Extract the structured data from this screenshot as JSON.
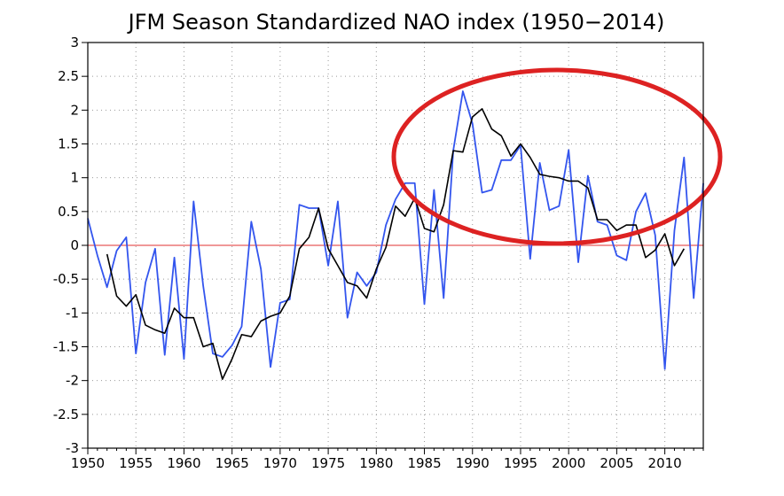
{
  "chart_data": {
    "type": "line",
    "title": "JFM Season Standardized NAO index (1950−2014)",
    "xlim": [
      1950,
      2014
    ],
    "ylim": [
      -3,
      3
    ],
    "x_ticks": [
      1950,
      1955,
      1960,
      1965,
      1970,
      1975,
      1980,
      1985,
      1990,
      1995,
      2000,
      2005,
      2010
    ],
    "y_ticks": [
      3,
      2.5,
      2,
      1.5,
      1,
      0.5,
      0,
      -0.5,
      -1,
      -1.5,
      -2,
      -2.5,
      -3
    ],
    "grid": true,
    "series": [
      {
        "color": "#3355ee",
        "x": [
          1950,
          1951,
          1952,
          1953,
          1954,
          1955,
          1956,
          1957,
          1958,
          1959,
          1960,
          1961,
          1962,
          1963,
          1964,
          1965,
          1966,
          1967,
          1968,
          1969,
          1970,
          1971,
          1972,
          1973,
          1974,
          1975,
          1976,
          1977,
          1978,
          1979,
          1980,
          1981,
          1982,
          1983,
          1984,
          1985,
          1986,
          1987,
          1988,
          1989,
          1990,
          1991,
          1992,
          1993,
          1994,
          1995,
          1996,
          1997,
          1998,
          1999,
          2000,
          2001,
          2002,
          2003,
          2004,
          2005,
          2006,
          2007,
          2008,
          2009,
          2010,
          2011,
          2012,
          2013,
          2014
        ],
        "values": [
          0.4,
          -0.15,
          -0.62,
          -0.08,
          0.12,
          -1.6,
          -0.55,
          -0.05,
          -1.62,
          -0.18,
          -1.68,
          0.65,
          -0.6,
          -1.6,
          -1.65,
          -1.48,
          -1.2,
          0.35,
          -0.35,
          -1.8,
          -0.85,
          -0.8,
          0.6,
          0.55,
          0.55,
          -0.3,
          0.65,
          -1.07,
          -0.4,
          -0.6,
          -0.4,
          0.3,
          0.68,
          0.92,
          0.92,
          -0.87,
          0.82,
          -0.78,
          1.4,
          2.28,
          1.8,
          0.78,
          0.82,
          1.26,
          1.26,
          1.48,
          -0.2,
          1.22,
          0.52,
          0.58,
          1.41,
          -0.25,
          1.03,
          0.35,
          0.3,
          -0.15,
          -0.22,
          0.5,
          0.77,
          0.15,
          -1.83,
          0.22,
          1.3,
          -0.78,
          0.92
        ]
      },
      {
        "color": "#000000",
        "x": [
          1952,
          1953,
          1954,
          1955,
          1956,
          1957,
          1958,
          1959,
          1960,
          1961,
          1962,
          1963,
          1964,
          1965,
          1966,
          1967,
          1968,
          1969,
          1970,
          1971,
          1972,
          1973,
          1974,
          1975,
          1976,
          1977,
          1978,
          1979,
          1980,
          1981,
          1982,
          1983,
          1984,
          1985,
          1986,
          1987,
          1988,
          1989,
          1990,
          1991,
          1992,
          1993,
          1994,
          1995,
          1996,
          1997,
          1998,
          1999,
          2000,
          2001,
          2002,
          2003,
          2004,
          2005,
          2006,
          2007,
          2008,
          2009,
          2010,
          2011,
          2012
        ],
        "values": [
          -0.13,
          -0.75,
          -0.9,
          -0.73,
          -1.18,
          -1.25,
          -1.3,
          -0.93,
          -1.07,
          -1.07,
          -1.5,
          -1.45,
          -1.98,
          -1.68,
          -1.32,
          -1.35,
          -1.12,
          -1.05,
          -1.0,
          -0.75,
          -0.05,
          0.12,
          0.55,
          -0.05,
          -0.3,
          -0.55,
          -0.6,
          -0.78,
          -0.35,
          -0.03,
          0.58,
          0.43,
          0.7,
          0.25,
          0.2,
          0.6,
          1.4,
          1.38,
          1.9,
          2.02,
          1.72,
          1.62,
          1.32,
          1.5,
          1.3,
          1.05,
          1.02,
          1.0,
          0.95,
          0.95,
          0.85,
          0.38,
          0.38,
          0.22,
          0.3,
          0.3,
          -0.18,
          -0.07,
          0.17,
          -0.3,
          -0.05
        ]
      }
    ],
    "reference_line": {
      "y": 0,
      "color": "#e03030"
    },
    "annotation": {
      "shape": "ellipse",
      "color": "#dd2222"
    }
  }
}
